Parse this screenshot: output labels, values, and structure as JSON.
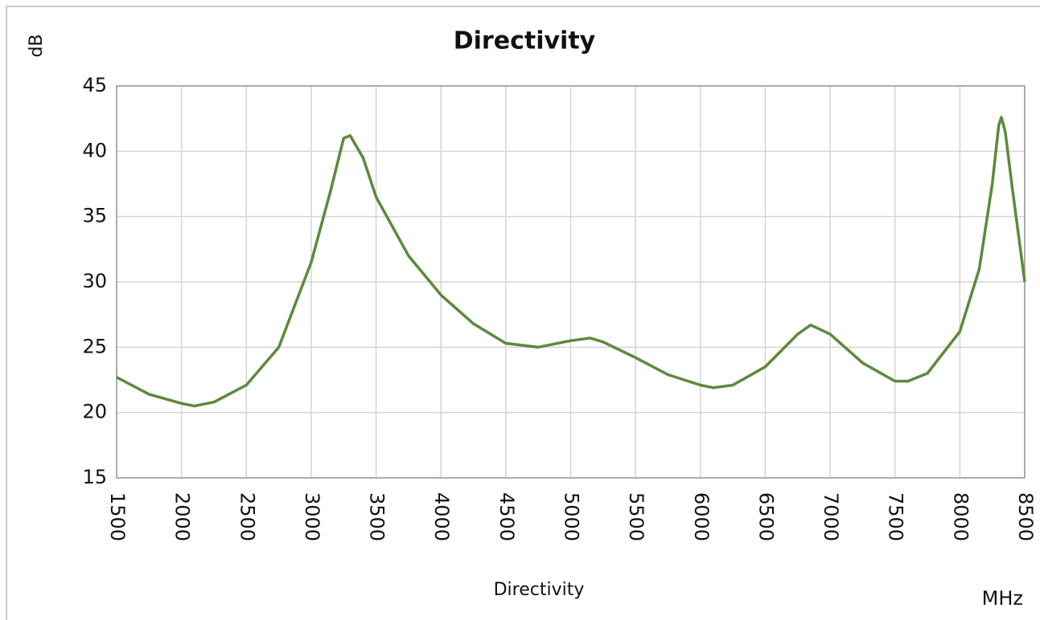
{
  "chart_data": {
    "type": "line",
    "title": "Directivity",
    "y_label": "dB",
    "x_label": "MHz",
    "x": [
      1500,
      1750,
      2000,
      2100,
      2250,
      2500,
      2750,
      3000,
      3150,
      3250,
      3300,
      3400,
      3500,
      3750,
      4000,
      4250,
      4500,
      4750,
      5000,
      5150,
      5250,
      5500,
      5750,
      6000,
      6100,
      6250,
      6500,
      6750,
      6850,
      7000,
      7250,
      7500,
      7600,
      7750,
      8000,
      8150,
      8250,
      8300,
      8320,
      8350,
      8400,
      8500
    ],
    "series": [
      {
        "name": "Directivity",
        "color": "#5b8a3c",
        "values": [
          22.7,
          21.4,
          20.7,
          20.5,
          20.8,
          22.1,
          25.0,
          31.5,
          37.0,
          41.0,
          41.2,
          39.5,
          36.5,
          32.0,
          29.0,
          26.8,
          25.3,
          25.0,
          25.5,
          25.7,
          25.4,
          24.2,
          22.9,
          22.1,
          21.9,
          22.1,
          23.5,
          26.0,
          26.7,
          26.0,
          23.8,
          22.4,
          22.4,
          23.0,
          26.2,
          31.0,
          37.5,
          42.0,
          42.6,
          41.5,
          37.5,
          30.0
        ]
      }
    ],
    "xlim": [
      1500,
      8500
    ],
    "xticks": [
      1500,
      2000,
      2500,
      3000,
      3500,
      4000,
      4500,
      5000,
      5500,
      6000,
      6500,
      7000,
      7500,
      8000,
      8500
    ],
    "ylim": [
      15,
      45
    ],
    "yticks": [
      15,
      20,
      25,
      30,
      35,
      40,
      45
    ],
    "grid": true
  }
}
